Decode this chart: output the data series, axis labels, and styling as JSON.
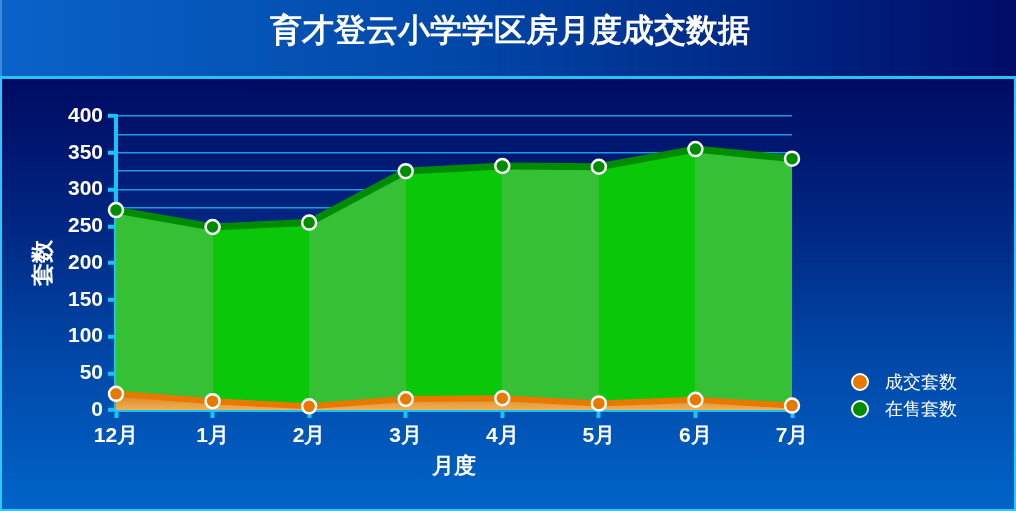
{
  "chart_data": {
    "type": "area",
    "title": "育才登云小学学区房月度成交数据",
    "xlabel": "月度",
    "ylabel": "套数",
    "categories": [
      "12月",
      "1月",
      "2月",
      "3月",
      "4月",
      "5月",
      "6月",
      "7月"
    ],
    "series": [
      {
        "name": "成交套数",
        "color": "#e87800",
        "values": [
          22,
          12,
          5,
          15,
          16,
          9,
          14,
          6
        ]
      },
      {
        "name": "在售套数",
        "color": "#008c00",
        "values": [
          272,
          249,
          255,
          325,
          332,
          331,
          355,
          342
        ]
      }
    ],
    "ylim": [
      0,
      400
    ],
    "yticks": [
      0,
      50,
      100,
      150,
      200,
      250,
      {
        "value": 275,
        "label": null
      },
      300,
      {
        "value": 325,
        "label": null
      },
      350,
      {
        "value": 375,
        "label": null
      },
      400
    ],
    "grid": "y",
    "legend": "bottom right",
    "marker": "circle"
  }
}
